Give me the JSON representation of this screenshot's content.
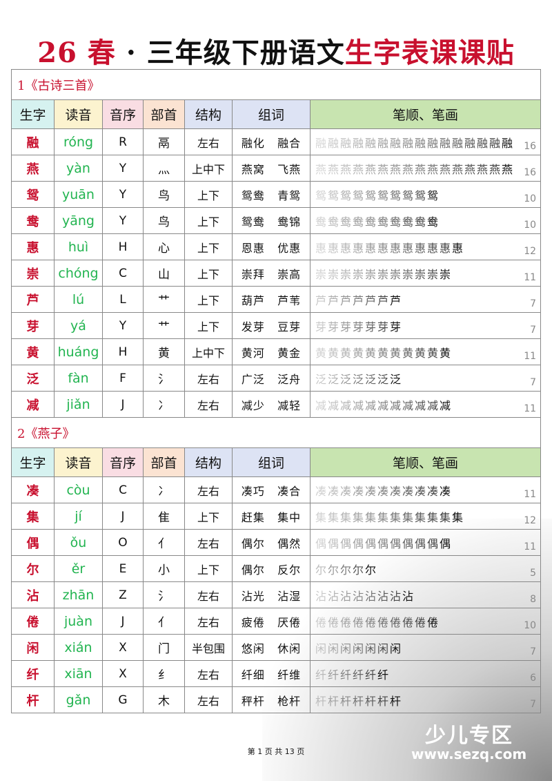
{
  "title": {
    "prefix": "26 春",
    "sep": "·",
    "mid": "三年级下册语文",
    "suffix": "生字表课课贴"
  },
  "headers": [
    "生字",
    "读音",
    "音序",
    "部首",
    "结构",
    "组词",
    "笔顺、笔画"
  ],
  "sections": [
    {
      "title": "1《古诗三首》",
      "rows": [
        [
          "融",
          "róng",
          "R",
          "鬲",
          "左右",
          "融化",
          "融合",
          16
        ],
        [
          "燕",
          "yàn",
          "Y",
          "灬",
          "上中下",
          "燕窝",
          "飞燕",
          16
        ],
        [
          "鸳",
          "yuān",
          "Y",
          "鸟",
          "上下",
          "鸳鸯",
          "青鸳",
          10
        ],
        [
          "鸯",
          "yāng",
          "Y",
          "鸟",
          "上下",
          "鸳鸯",
          "鸯锦",
          10
        ],
        [
          "惠",
          "huì",
          "H",
          "心",
          "上下",
          "恩惠",
          "优惠",
          12
        ],
        [
          "崇",
          "chóng",
          "C",
          "山",
          "上下",
          "崇拜",
          "崇高",
          11
        ],
        [
          "芦",
          "lú",
          "L",
          "艹",
          "上下",
          "葫芦",
          "芦苇",
          7
        ],
        [
          "芽",
          "yá",
          "Y",
          "艹",
          "上下",
          "发芽",
          "豆芽",
          7
        ],
        [
          "黄",
          "huáng",
          "H",
          "黄",
          "上中下",
          "黄河",
          "黄金",
          11
        ],
        [
          "泛",
          "fàn",
          "F",
          "氵",
          "左右",
          "广泛",
          "泛舟",
          7
        ],
        [
          "减",
          "jiǎn",
          "J",
          "冫",
          "左右",
          "减少",
          "减轻",
          11
        ]
      ]
    },
    {
      "title": "2《燕子》",
      "rows": [
        [
          "凑",
          "còu",
          "C",
          "冫",
          "左右",
          "凑巧",
          "凑合",
          11
        ],
        [
          "集",
          "jí",
          "J",
          "隹",
          "上下",
          "赶集",
          "集中",
          12
        ],
        [
          "偶",
          "ǒu",
          "O",
          "亻",
          "左右",
          "偶尔",
          "偶然",
          11
        ],
        [
          "尔",
          "ěr",
          "E",
          "小",
          "上下",
          "偶尔",
          "反尔",
          5
        ],
        [
          "沾",
          "zhān",
          "Z",
          "氵",
          "左右",
          "沾光",
          "沾湿",
          8
        ],
        [
          "倦",
          "juàn",
          "J",
          "亻",
          "左右",
          "疲倦",
          "厌倦",
          10
        ],
        [
          "闲",
          "xián",
          "X",
          "门",
          "半包围",
          "悠闲",
          "休闲",
          7
        ],
        [
          "纤",
          "xiān",
          "X",
          "纟",
          "左右",
          "纤细",
          "纤维",
          6
        ],
        [
          "杆",
          "gǎn",
          "G",
          "木",
          "左右",
          "秤杆",
          "枪杆",
          7
        ]
      ]
    }
  ],
  "footer": "第 1 页 共 13 页",
  "watermark": {
    "name": "少儿专区",
    "url": "www.sezq.com"
  },
  "colors": {
    "accent": "#c8102e",
    "pinyin": "#22b450"
  }
}
